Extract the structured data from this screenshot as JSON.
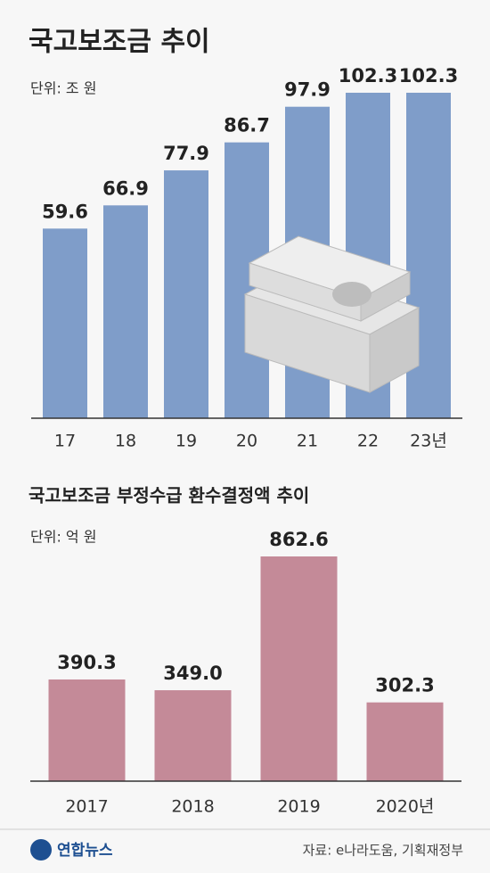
{
  "chart_data": [
    {
      "type": "bar",
      "title": "국고보조금 추이",
      "subtitle": "단위: 조 원",
      "categories": [
        "17",
        "18",
        "19",
        "20",
        "21",
        "22",
        "23년"
      ],
      "values": [
        59.6,
        66.9,
        77.9,
        86.7,
        97.9,
        102.3,
        102.3
      ],
      "color": "#7f9dc9"
    },
    {
      "type": "bar",
      "title": "국고보조금 부정수급 환수결정액 추이",
      "subtitle": "단위: 억 원",
      "categories": [
        "2017",
        "2018",
        "2019",
        "2020년"
      ],
      "values": [
        390.3,
        349.0,
        862.6,
        302.3
      ],
      "value_labels": [
        "390.3",
        "349.0",
        "862.6",
        "302.3"
      ],
      "color": "#c48a98"
    }
  ],
  "footer": {
    "logo": "연합뉴스",
    "source": "자료: e나라도움, 기획재정부"
  }
}
